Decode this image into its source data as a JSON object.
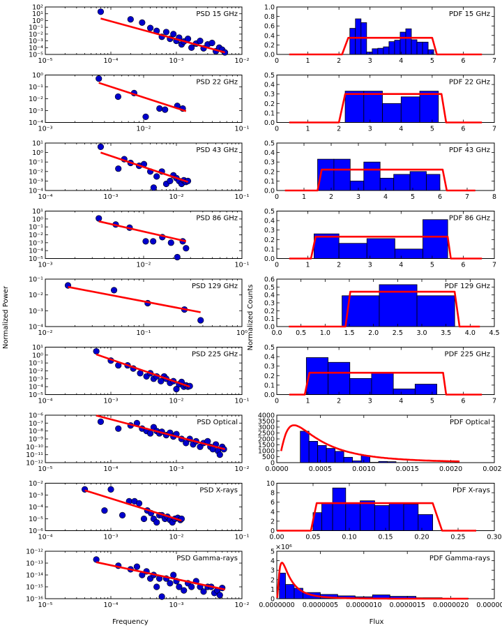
{
  "figure": {
    "ylabel_left": "Normalized Power",
    "ylabel_right": "Normalized Counts",
    "xlabel_left": "Frequency",
    "xlabel_right": "Flux"
  },
  "chart_data": [
    {
      "id": "psd15",
      "type": "scatter",
      "title": "PSD 15 GHz",
      "xscale": "log",
      "yscale": "log",
      "xlim": [
        1e-05,
        0.01
      ],
      "ylim": [
        1e-05,
        100
      ],
      "xticks": [
        -5,
        -4,
        -3,
        -2
      ],
      "yticks": [
        -5,
        -4,
        -3,
        -2,
        -1,
        0,
        1,
        2
      ],
      "x": [
        7e-05,
        0.0002,
        0.0003,
        0.0004,
        0.0005,
        0.0006,
        0.0007,
        0.0008,
        0.0009,
        0.001,
        0.0011,
        0.0012,
        0.0013,
        0.0015,
        0.0017,
        0.002,
        0.0023,
        0.0026,
        0.003,
        0.0035,
        0.004,
        0.0045,
        0.005,
        0.0055
      ],
      "y": [
        20,
        1.5,
        0.5,
        0.08,
        0.03,
        0.004,
        0.02,
        0.002,
        0.01,
        0.001,
        0.003,
        0.0003,
        0.0008,
        0.002,
        0.0001,
        0.0004,
        0.001,
        8e-05,
        0.0003,
        0.0005,
        3e-05,
        0.0001,
        5e-05,
        2e-05
      ],
      "fit": {
        "x": [
          7e-05,
          0.0055
        ],
        "y": [
          2,
          2e-05
        ]
      }
    },
    {
      "id": "pdf15",
      "type": "bar",
      "title": "PDF 15 GHz",
      "xlim": [
        0,
        7
      ],
      "ylim": [
        0,
        1.0
      ],
      "xticks": [
        0,
        1,
        2,
        3,
        4,
        5,
        6,
        7
      ],
      "yticks": [
        0,
        0.2,
        0.4,
        0.6,
        0.8,
        1.0
      ],
      "yfmt": 1,
      "edges": [
        2.35,
        2.53,
        2.71,
        2.89,
        3.07,
        3.25,
        3.43,
        3.61,
        3.79,
        3.97,
        4.15,
        4.33,
        4.51,
        4.69,
        4.87,
        5.05
      ],
      "values": [
        0.55,
        0.75,
        0.67,
        0.05,
        0.12,
        0.13,
        0.16,
        0.27,
        0.3,
        0.47,
        0.54,
        0.31,
        0.26,
        0.26,
        0.1
      ],
      "fit": {
        "x": [
          0.4,
          2.1,
          2.3,
          5.0,
          5.15,
          6.6
        ],
        "y": [
          0,
          0,
          0.35,
          0.35,
          0,
          0
        ]
      }
    },
    {
      "id": "psd22",
      "type": "scatter",
      "title": "PSD 22 GHz",
      "xscale": "log",
      "yscale": "log",
      "xlim": [
        0.001,
        0.1
      ],
      "ylim": [
        0.0001,
        1
      ],
      "xticks": [
        -3,
        -2,
        -1
      ],
      "yticks": [
        -4,
        -3,
        -2,
        -1,
        0
      ],
      "x": [
        0.0035,
        0.0055,
        0.008,
        0.0105,
        0.0145,
        0.0165,
        0.022,
        0.025
      ],
      "y": [
        0.5,
        0.015,
        0.03,
        0.0003,
        0.0015,
        0.0012,
        0.0025,
        0.0015
      ],
      "fit": {
        "x": [
          0.0035,
          0.027
        ],
        "y": [
          0.22,
          0.0009
        ]
      }
    },
    {
      "id": "pdf22",
      "type": "bar",
      "title": "PDF 22 GHz",
      "xlim": [
        0,
        7
      ],
      "ylim": [
        0,
        0.5
      ],
      "xticks": [
        0,
        1,
        2,
        3,
        4,
        5,
        6,
        7
      ],
      "yticks": [
        0,
        0.1,
        0.2,
        0.3,
        0.4,
        0.5
      ],
      "yfmt": 1,
      "edges": [
        2.2,
        2.8,
        3.4,
        4.0,
        4.6,
        5.2
      ],
      "values": [
        0.33,
        0.33,
        0.2,
        0.27,
        0.33
      ],
      "fit": {
        "x": [
          0.4,
          2.0,
          2.2,
          5.3,
          5.45,
          6.6
        ],
        "y": [
          0,
          0,
          0.3,
          0.3,
          0,
          0
        ]
      }
    },
    {
      "id": "psd43",
      "type": "scatter",
      "title": "PSD 43 GHz",
      "xscale": "log",
      "yscale": "log",
      "xlim": [
        0.0001,
        0.1
      ],
      "ylim": [
        0.0001,
        10
      ],
      "xticks": [
        -4,
        -3,
        -2,
        -1
      ],
      "yticks": [
        -4,
        -3,
        -2,
        -1,
        0,
        1
      ],
      "x": [
        0.0007,
        0.0013,
        0.0016,
        0.002,
        0.0027,
        0.0032,
        0.004,
        0.0045,
        0.005,
        0.006,
        0.007,
        0.008,
        0.009,
        0.01,
        0.011,
        0.012,
        0.013,
        0.014,
        0.015
      ],
      "y": [
        4,
        0.02,
        0.2,
        0.08,
        0.04,
        0.06,
        0.01,
        0.0002,
        0.003,
        0.01,
        0.0005,
        0.001,
        0.004,
        0.002,
        0.001,
        0.0005,
        0.0012,
        0.0008,
        0.001
      ],
      "fit": {
        "x": [
          0.0007,
          0.015
        ],
        "y": [
          1,
          0.0008
        ]
      }
    },
    {
      "id": "pdf43",
      "type": "bar",
      "title": "PDF 43 GHz",
      "xlim": [
        0,
        8
      ],
      "ylim": [
        0,
        0.5
      ],
      "xticks": [
        0,
        1,
        2,
        3,
        4,
        5,
        6,
        7,
        8
      ],
      "yticks": [
        0,
        0.1,
        0.2,
        0.3,
        0.4,
        0.5
      ],
      "yfmt": 1,
      "edges": [
        1.5,
        2.1,
        2.7,
        3.2,
        3.8,
        4.3,
        4.9,
        5.5,
        6.0
      ],
      "values": [
        0.33,
        0.33,
        0.1,
        0.3,
        0.13,
        0.17,
        0.2,
        0.17
      ],
      "fit": {
        "x": [
          0.3,
          1.5,
          1.65,
          6.1,
          6.25,
          7.3
        ],
        "y": [
          0,
          0,
          0.22,
          0.22,
          0,
          0
        ]
      }
    },
    {
      "id": "psd86",
      "type": "scatter",
      "title": "PSD 86 GHz",
      "xscale": "log",
      "yscale": "log",
      "xlim": [
        0.001,
        0.1
      ],
      "ylim": [
        1e-05,
        10
      ],
      "xticks": [
        -3,
        -2,
        -1
      ],
      "yticks": [
        -5,
        -4,
        -3,
        -2,
        -1,
        0,
        1
      ],
      "x": [
        0.0035,
        0.0052,
        0.0072,
        0.0105,
        0.0125,
        0.0155,
        0.019,
        0.022,
        0.025,
        0.027
      ],
      "y": [
        1.2,
        0.2,
        0.08,
        0.0015,
        0.0015,
        0.005,
        0.001,
        1.5e-05,
        0.0015,
        0.0002
      ],
      "fit": {
        "x": [
          0.0035,
          0.027
        ],
        "y": [
          0.5,
          0.0015
        ]
      }
    },
    {
      "id": "pdf86",
      "type": "bar",
      "title": "PDF 86 GHz",
      "xlim": [
        0,
        7
      ],
      "ylim": [
        0,
        0.5
      ],
      "xticks": [
        0,
        1,
        2,
        3,
        4,
        5,
        6,
        7
      ],
      "yticks": [
        0,
        0.1,
        0.2,
        0.3,
        0.4,
        0.5
      ],
      "yfmt": 1,
      "edges": [
        1.2,
        2.0,
        2.9,
        3.8,
        4.7,
        5.5
      ],
      "values": [
        0.26,
        0.16,
        0.21,
        0.1,
        0.41
      ],
      "fit": {
        "x": [
          0.4,
          1.1,
          1.25,
          5.5,
          5.6,
          6.6
        ],
        "y": [
          0,
          0,
          0.23,
          0.23,
          0,
          0
        ]
      }
    },
    {
      "id": "psd129",
      "type": "scatter",
      "title": "PSD 129 GHz",
      "xscale": "log",
      "yscale": "log",
      "xlim": [
        0.01,
        1
      ],
      "ylim": [
        0.0001,
        0.1
      ],
      "xticks": [
        -2,
        -1,
        0
      ],
      "yticks": [
        -4,
        -3,
        -2,
        -1
      ],
      "x": [
        0.017,
        0.05,
        0.11,
        0.26,
        0.38
      ],
      "y": [
        0.04,
        0.02,
        0.003,
        0.0012,
        0.00025
      ],
      "fit": {
        "x": [
          0.017,
          0.38
        ],
        "y": [
          0.032,
          0.0008
        ]
      }
    },
    {
      "id": "pdf129",
      "type": "bar",
      "title": "PDF 129 GHz",
      "xlim": [
        0,
        4.5
      ],
      "ylim": [
        0,
        0.6
      ],
      "xticks": [
        0,
        0.5,
        1,
        1.5,
        2,
        2.5,
        3,
        3.5,
        4,
        4.5
      ],
      "yticks": [
        0,
        0.1,
        0.2,
        0.3,
        0.4,
        0.5,
        0.6
      ],
      "yfmt": 1,
      "xfmt": 1,
      "edges": [
        1.35,
        2.12,
        2.9,
        3.68
      ],
      "values": [
        0.39,
        0.53,
        0.39
      ],
      "fit": {
        "x": [
          0.25,
          1.42,
          1.52,
          3.68,
          3.78,
          4.2
        ],
        "y": [
          0,
          0,
          0.44,
          0.44,
          0,
          0
        ]
      }
    },
    {
      "id": "psd225",
      "type": "scatter",
      "title": "PSD 225 GHz",
      "xscale": "log",
      "yscale": "log",
      "xlim": [
        0.0001,
        0.1
      ],
      "ylim": [
        1e-05,
        10
      ],
      "xticks": [
        -4,
        -3,
        -2,
        -1
      ],
      "yticks": [
        -5,
        -4,
        -3,
        -2,
        -1,
        0,
        1
      ],
      "x": [
        0.0006,
        0.001,
        0.0013,
        0.0018,
        0.0022,
        0.0028,
        0.0035,
        0.004,
        0.0045,
        0.005,
        0.0058,
        0.0065,
        0.007,
        0.008,
        0.009,
        0.01,
        0.011,
        0.012,
        0.013,
        0.014,
        0.015,
        0.016
      ],
      "y": [
        3,
        0.2,
        0.05,
        0.05,
        0.02,
        0.005,
        0.002,
        0.005,
        0.001,
        0.002,
        0.0005,
        0.002,
        0.001,
        0.0003,
        0.0005,
        5e-05,
        0.0002,
        0.0004,
        0.0001,
        0.00015,
        0.0001,
        0.00012
      ],
      "fit": {
        "x": [
          0.0006,
          0.016
        ],
        "y": [
          1.2,
          0.0001
        ]
      }
    },
    {
      "id": "pdf225",
      "type": "bar",
      "title": "PDF 225 GHz",
      "xlim": [
        0,
        7
      ],
      "ylim": [
        0,
        0.5
      ],
      "xticks": [
        0,
        1,
        2,
        3,
        4,
        5,
        6,
        7
      ],
      "yticks": [
        0,
        0.1,
        0.2,
        0.3,
        0.4,
        0.5
      ],
      "yfmt": 1,
      "edges": [
        0.95,
        1.65,
        2.35,
        3.05,
        3.75,
        4.45,
        5.15
      ],
      "values": [
        0.39,
        0.34,
        0.17,
        0.23,
        0.06,
        0.11
      ],
      "fit": {
        "x": [
          0.4,
          0.9,
          1.05,
          5.35,
          5.45,
          6.6
        ],
        "y": [
          0,
          0,
          0.23,
          0.23,
          0,
          0
        ]
      }
    },
    {
      "id": "psdopt",
      "type": "scatter",
      "title": "PSD Optical",
      "xscale": "log",
      "yscale": "log",
      "xlim": [
        1e-05,
        0.01
      ],
      "ylim": [
        1e-12,
        1e-06
      ],
      "xticks": [
        -5,
        -4,
        -3,
        -2
      ],
      "yticks": [
        -12,
        -11,
        -10,
        -9,
        -8,
        -7,
        -6
      ],
      "x": [
        7e-05,
        0.00013,
        0.0002,
        0.00025,
        0.0003,
        0.00035,
        0.0004,
        0.00045,
        0.0005,
        0.00055,
        0.0006,
        0.0007,
        0.0008,
        0.0009,
        0.001,
        0.0012,
        0.0014,
        0.0016,
        0.0018,
        0.002,
        0.0023,
        0.0026,
        0.003,
        0.0033,
        0.0036,
        0.004,
        0.0043,
        0.0046,
        0.005,
        0.0053
      ],
      "y": [
        1.5e-07,
        2e-08,
        5e-08,
        1e-07,
        2e-08,
        1e-08,
        5e-09,
        3e-08,
        1e-08,
        5e-09,
        8e-09,
        3e-09,
        6e-09,
        2e-09,
        4e-09,
        1e-09,
        3e-10,
        1e-09,
        2e-10,
        5e-10,
        1e-10,
        3e-10,
        5e-10,
        1e-10,
        5e-11,
        2e-10,
        3e-11,
        1e-11,
        1e-10,
        5e-11
      ],
      "fit": {
        "x": [
          6e-05,
          0.0055
        ],
        "y": [
          9e-07,
          5e-11
        ]
      }
    },
    {
      "id": "pdfopt",
      "type": "bar",
      "title": "PDF Optical",
      "xlim": [
        0,
        0.0025
      ],
      "ylim": [
        0,
        4000
      ],
      "xticks": [
        0,
        0.0005,
        0.001,
        0.0015,
        0.002,
        0.0025
      ],
      "xfmt": 4,
      "yticks": [
        0,
        500,
        1000,
        1500,
        2000,
        2500,
        3000,
        3500,
        4000
      ],
      "yfmt": 0,
      "edges": [
        0.00027,
        0.00037,
        0.00047,
        0.00057,
        0.00067,
        0.00077,
        0.00087,
        0.00097,
        0.00107,
        0.00117,
        0.00127,
        0.00137
      ],
      "values": [
        2650,
        1800,
        1450,
        1200,
        950,
        450,
        150,
        600,
        30,
        100,
        80
      ],
      "fit": {
        "type": "lognorm",
        "x0": 5e-05,
        "x1": 0.0021,
        "peak_x": 0.00027,
        "peak_y": 3150
      }
    },
    {
      "id": "psdx",
      "type": "scatter",
      "title": "PSD X-rays",
      "xscale": "log",
      "yscale": "log",
      "xlim": [
        0.0001,
        0.1
      ],
      "ylim": [
        1e-06,
        0.01
      ],
      "xticks": [
        -4,
        -3,
        -2,
        -1
      ],
      "yticks": [
        -6,
        -5,
        -4,
        -3,
        -2
      ],
      "x": [
        0.0004,
        0.0008,
        0.001,
        0.0015,
        0.0019,
        0.0023,
        0.0027,
        0.0032,
        0.0036,
        0.0041,
        0.0045,
        0.005,
        0.0055,
        0.006,
        0.0067,
        0.0073,
        0.008,
        0.0087,
        0.0095,
        0.0105,
        0.0115,
        0.012
      ],
      "y": [
        0.003,
        5e-05,
        0.003,
        2e-05,
        0.0003,
        0.0003,
        0.0002,
        1e-05,
        5e-05,
        3e-05,
        1e-05,
        5e-06,
        2e-05,
        2e-05,
        1e-05,
        1.5e-05,
        8e-06,
        5e-06,
        1e-05,
        1.2e-05,
        8e-06,
        1e-05
      ],
      "fit": {
        "x": [
          0.0004,
          0.012
        ],
        "y": [
          0.0025,
          7e-06
        ]
      }
    },
    {
      "id": "pdfx",
      "type": "bar",
      "title": "PDF X-rays",
      "xlim": [
        0,
        0.3
      ],
      "ylim": [
        0,
        10
      ],
      "xticks": [
        0,
        0.05,
        0.1,
        0.15,
        0.2,
        0.25,
        0.3
      ],
      "xfmt": 2,
      "yticks": [
        0,
        2,
        4,
        6,
        8,
        10
      ],
      "yfmt": 0,
      "edges": [
        0.05,
        0.062,
        0.077,
        0.095,
        0.115,
        0.135,
        0.155,
        0.175,
        0.195,
        0.215
      ],
      "values": [
        3.8,
        5.8,
        9.0,
        5.8,
        6.3,
        5.3,
        5.8,
        5.6,
        3.4
      ],
      "fit": {
        "x": [
          0.0,
          0.047,
          0.055,
          0.215,
          0.228,
          0.275
        ],
        "y": [
          0,
          0,
          5.8,
          5.8,
          0,
          0
        ]
      }
    },
    {
      "id": "psdg",
      "type": "scatter",
      "title": "PSD Gamma-rays",
      "xscale": "log",
      "yscale": "log",
      "xlim": [
        1e-05,
        0.01
      ],
      "ylim": [
        1e-16,
        1e-12
      ],
      "xticks": [
        -5,
        -4,
        -3,
        -2
      ],
      "yticks": [
        -16,
        -15,
        -14,
        -13,
        -12
      ],
      "x": [
        6e-05,
        0.00013,
        0.0002,
        0.00025,
        0.0003,
        0.00035,
        0.0004,
        0.00045,
        0.0005,
        0.00055,
        0.0006,
        0.0007,
        0.0008,
        0.0009,
        0.001,
        0.0011,
        0.0013,
        0.0015,
        0.0017,
        0.002,
        0.0023,
        0.0026,
        0.003,
        0.0034,
        0.0038,
        0.0042,
        0.0046,
        0.005
      ],
      "y": [
        2e-13,
        6e-14,
        3e-14,
        5e-14,
        1e-14,
        2e-14,
        5e-15,
        1e-14,
        1e-15,
        5e-15,
        1.5e-16,
        5e-15,
        2e-15,
        1e-14,
        3e-15,
        1e-15,
        5e-16,
        2e-15,
        1e-15,
        3e-15,
        1e-15,
        4e-16,
        1e-15,
        1e-15,
        3e-16,
        5e-16,
        2e-16,
        8e-16
      ],
      "fit": {
        "x": [
          6e-05,
          0.0055
        ],
        "y": [
          1.2e-13,
          6e-16
        ]
      }
    },
    {
      "id": "pdfg",
      "type": "bar",
      "title": "PDF Gamma-rays",
      "xlim": [
        0,
        2.5e-06
      ],
      "ylim": [
        0,
        5
      ],
      "xticks": [
        0,
        5e-07,
        1e-06,
        1.5e-06,
        2e-06,
        2.5e-06
      ],
      "xfmt": 7,
      "yticks": [
        0,
        1,
        2,
        3,
        4,
        5
      ],
      "yfmt": 0,
      "ymultiplier": "×10⁶",
      "edges": [
        3e-08,
        1e-07,
        2e-07,
        3e-07,
        5e-07,
        7e-07,
        9e-07,
        1.1e-06,
        1.3e-06,
        1.6e-06,
        1.9e-06,
        2.2e-06
      ],
      "values": [
        2.7,
        1.5,
        1.1,
        0.65,
        0.45,
        0.3,
        0.2,
        0.4,
        0.25,
        0.1,
        0.05
      ],
      "fit": {
        "type": "lognorm",
        "x0": 5e-09,
        "x1": 2.2e-06,
        "peak_x": 8e-08,
        "peak_y": 3.8
      }
    }
  ]
}
